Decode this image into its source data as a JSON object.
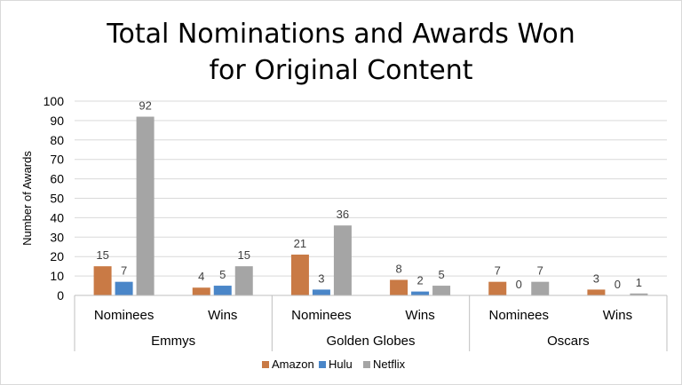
{
  "chart_data": {
    "type": "bar",
    "title_lines": [
      "Total Nominations and Awards Won",
      "for Original Content"
    ],
    "ylabel": "Number of Awards",
    "ylim": [
      0,
      100
    ],
    "yticks": [
      0,
      10,
      20,
      30,
      40,
      50,
      60,
      70,
      80,
      90,
      100
    ],
    "grid": true,
    "legend_position": "bottom",
    "groups": [
      {
        "name": "Emmys",
        "categories": [
          "Nominees",
          "Wins"
        ]
      },
      {
        "name": "Golden Globes",
        "categories": [
          "Nominees",
          "Wins"
        ]
      },
      {
        "name": "Oscars",
        "categories": [
          "Nominees",
          "Wins"
        ]
      }
    ],
    "series": [
      {
        "name": "Amazon",
        "color": "#c97a45",
        "values": [
          15,
          4,
          21,
          8,
          7,
          3
        ]
      },
      {
        "name": "Hulu",
        "color": "#4a86c8",
        "values": [
          7,
          5,
          3,
          2,
          0,
          0
        ]
      },
      {
        "name": "Netflix",
        "color": "#a5a5a5",
        "values": [
          92,
          15,
          36,
          5,
          7,
          1
        ]
      }
    ]
  }
}
